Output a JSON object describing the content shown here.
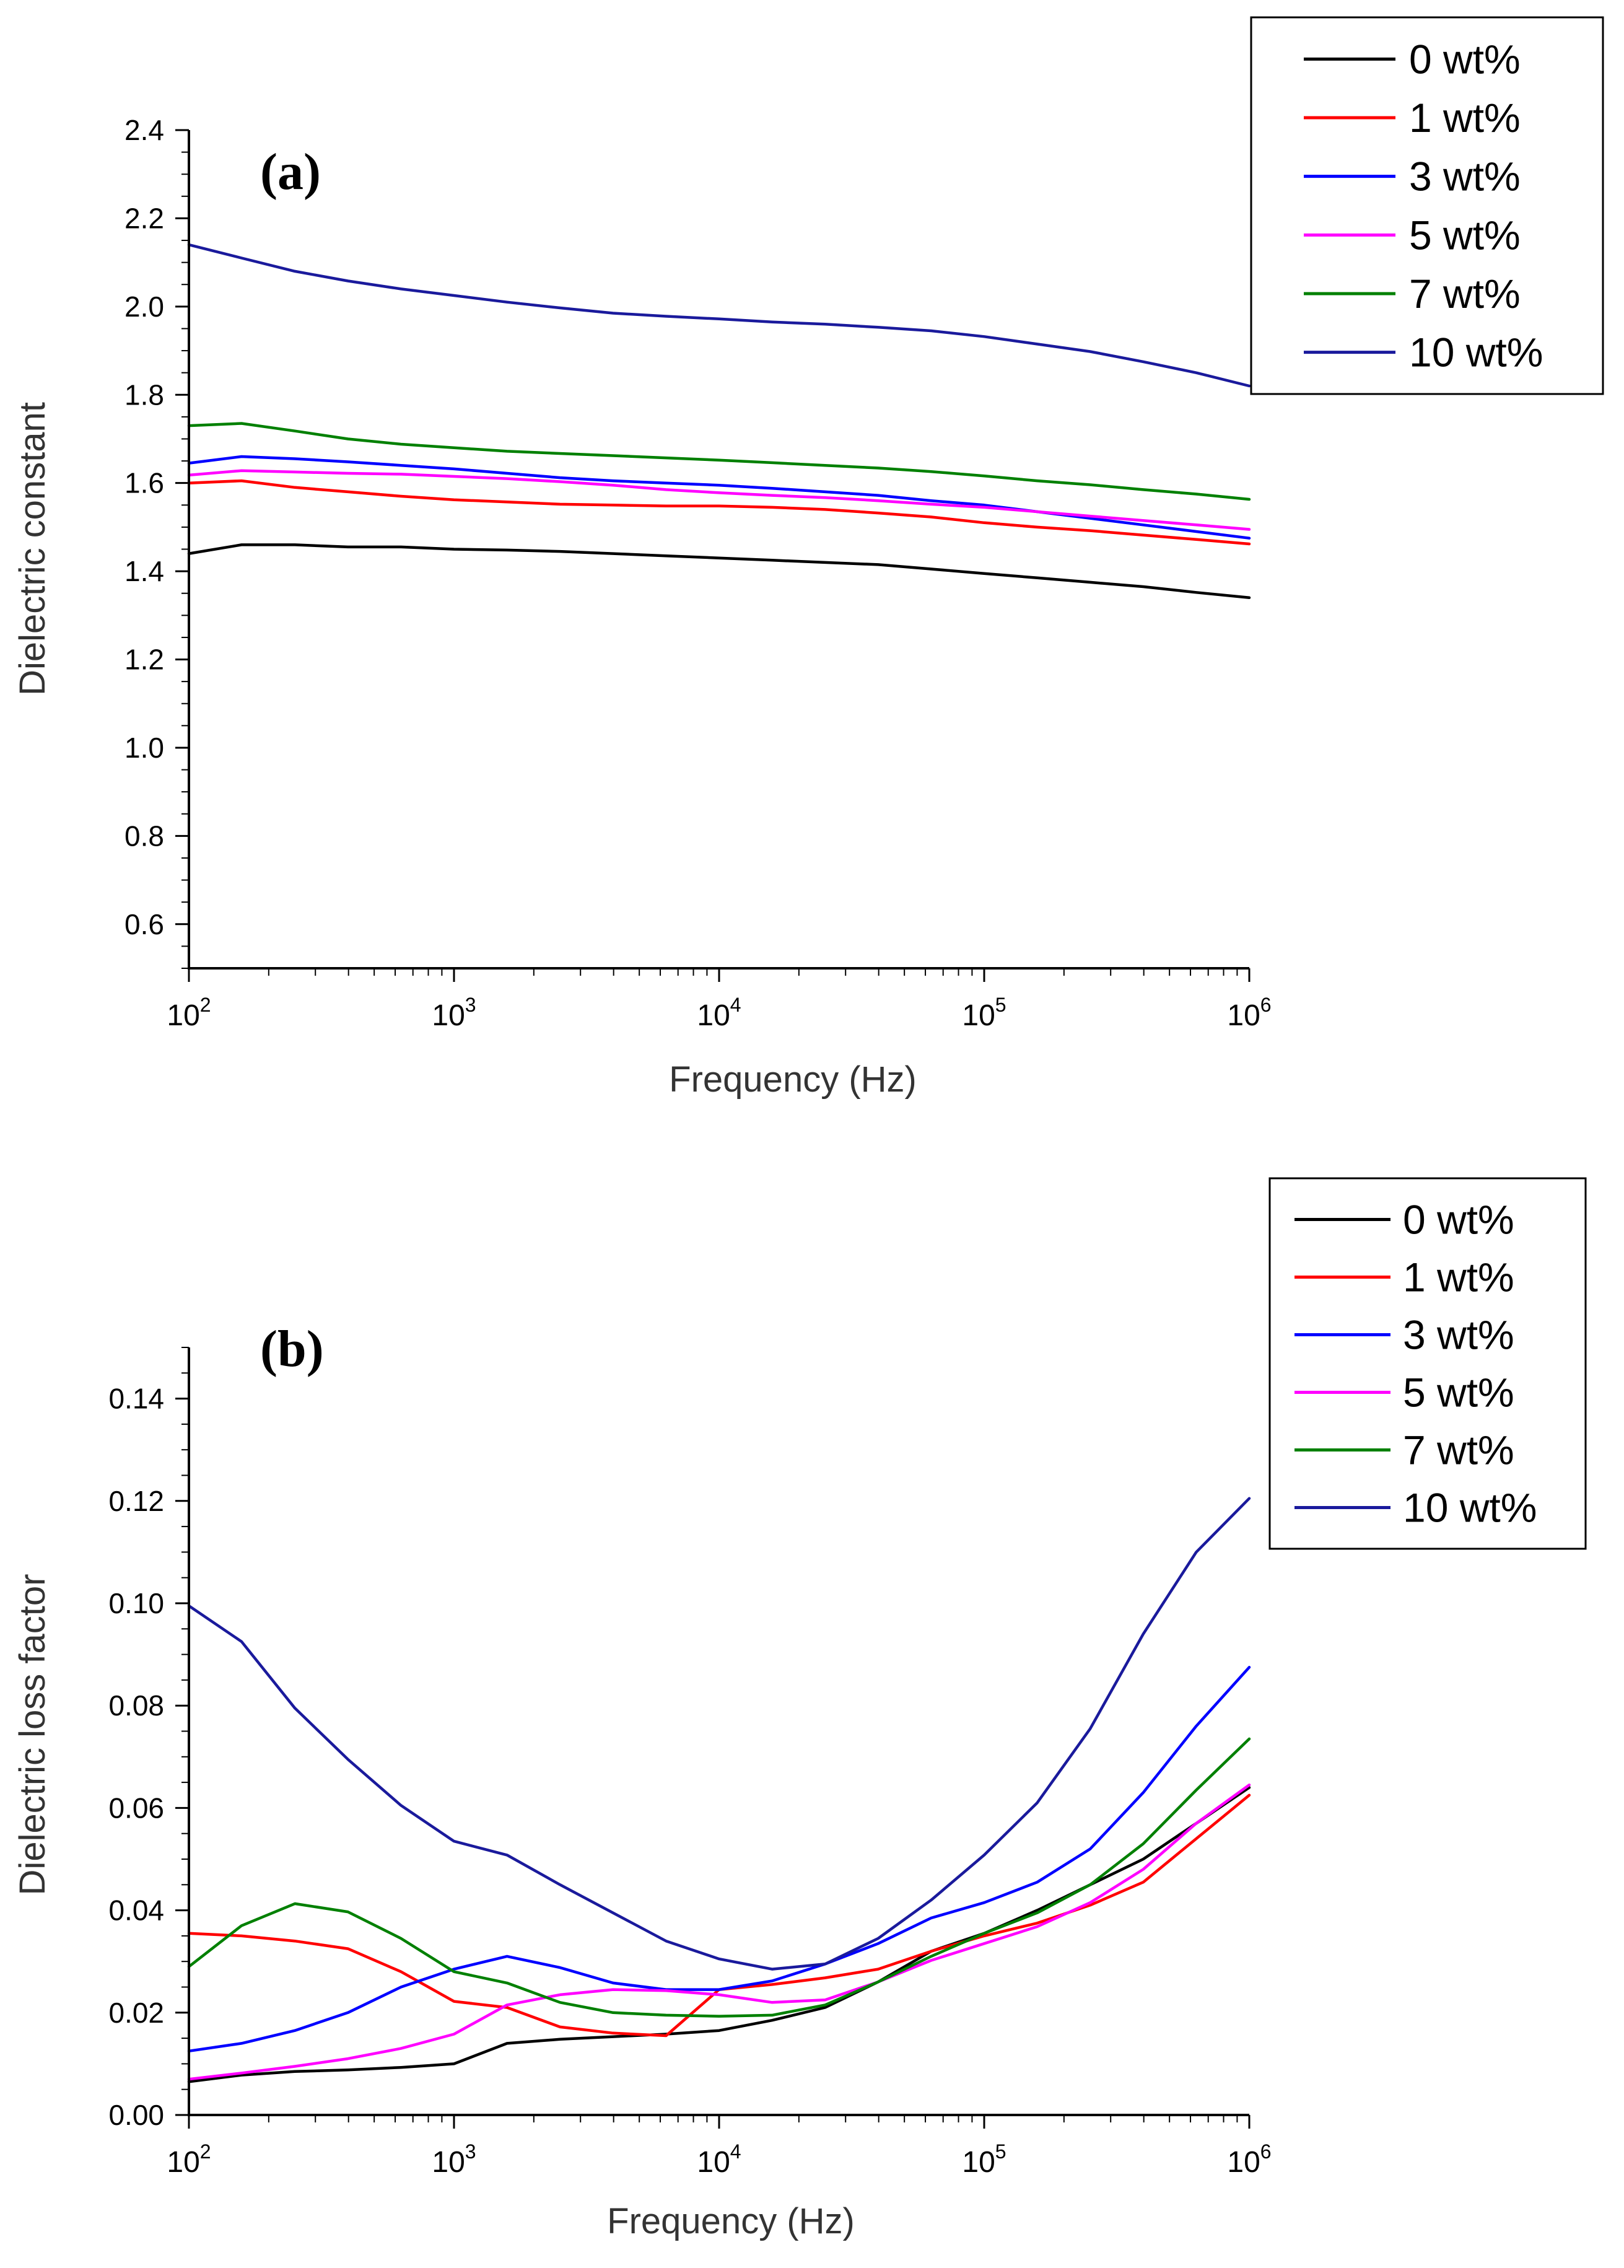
{
  "chart_data": [
    {
      "type": "line",
      "panel_label": "(a)",
      "title": "",
      "xlabel": "Frequency (Hz)",
      "ylabel": "Dielectric constant",
      "xscale": "log",
      "xlim": [
        100,
        1000000
      ],
      "ylim": [
        0.5,
        2.4
      ],
      "x_ticks": [
        {
          "base": "10",
          "exp": "2"
        },
        {
          "base": "10",
          "exp": "3"
        },
        {
          "base": "10",
          "exp": "4"
        },
        {
          "base": "10",
          "exp": "5"
        },
        {
          "base": "10",
          "exp": "6"
        }
      ],
      "y_ticks": [
        "0.6",
        "0.8",
        "1.0",
        "1.2",
        "1.4",
        "1.6",
        "1.8",
        "2.0",
        "2.2",
        "2.4"
      ],
      "grid": false,
      "legend_position": "outside-top-right",
      "x": [
        100,
        158,
        251,
        398,
        631,
        1000,
        1585,
        2512,
        3981,
        6310,
        10000,
        15850,
        25120,
        39810,
        63100,
        100000,
        158500,
        251200,
        398100,
        631000,
        1000000
      ],
      "series": [
        {
          "name": "0 wt%",
          "color": "#000000",
          "values": [
            1.44,
            1.46,
            1.46,
            1.455,
            1.455,
            1.45,
            1.448,
            1.445,
            1.44,
            1.435,
            1.43,
            1.425,
            1.42,
            1.415,
            1.405,
            1.395,
            1.385,
            1.375,
            1.365,
            1.352,
            1.34
          ]
        },
        {
          "name": "1 wt%",
          "color": "#ff0000",
          "values": [
            1.6,
            1.605,
            1.59,
            1.58,
            1.57,
            1.562,
            1.557,
            1.552,
            1.55,
            1.548,
            1.548,
            1.545,
            1.54,
            1.532,
            1.523,
            1.51,
            1.5,
            1.492,
            1.482,
            1.472,
            1.462
          ]
        },
        {
          "name": "3 wt%",
          "color": "#0000ff",
          "values": [
            1.645,
            1.66,
            1.655,
            1.648,
            1.64,
            1.632,
            1.622,
            1.612,
            1.605,
            1.6,
            1.595,
            1.588,
            1.58,
            1.572,
            1.56,
            1.55,
            1.535,
            1.52,
            1.505,
            1.49,
            1.475
          ]
        },
        {
          "name": "5 wt%",
          "color": "#ff00ff",
          "values": [
            1.618,
            1.628,
            1.625,
            1.622,
            1.62,
            1.615,
            1.61,
            1.603,
            1.595,
            1.585,
            1.578,
            1.572,
            1.567,
            1.56,
            1.552,
            1.545,
            1.535,
            1.525,
            1.515,
            1.505,
            1.495
          ]
        },
        {
          "name": "7 wt%",
          "color": "#008000",
          "values": [
            1.73,
            1.735,
            1.718,
            1.7,
            1.688,
            1.68,
            1.672,
            1.667,
            1.662,
            1.657,
            1.652,
            1.646,
            1.64,
            1.634,
            1.626,
            1.616,
            1.605,
            1.596,
            1.585,
            1.575,
            1.563
          ]
        },
        {
          "name": "10 wt%",
          "color": "#1a1a9c",
          "values": [
            2.14,
            2.11,
            2.08,
            2.058,
            2.04,
            2.025,
            2.01,
            1.997,
            1.985,
            1.978,
            1.972,
            1.965,
            1.96,
            1.953,
            1.945,
            1.932,
            1.915,
            1.898,
            1.875,
            1.85,
            1.82
          ]
        }
      ]
    },
    {
      "type": "line",
      "panel_label": "(b)",
      "title": "",
      "xlabel": "Frequency (Hz)",
      "ylabel": "Dielectric loss factor",
      "xscale": "log",
      "xlim": [
        100,
        1000000
      ],
      "ylim": [
        0,
        0.15
      ],
      "x_ticks": [
        {
          "base": "10",
          "exp": "2"
        },
        {
          "base": "10",
          "exp": "3"
        },
        {
          "base": "10",
          "exp": "4"
        },
        {
          "base": "10",
          "exp": "5"
        },
        {
          "base": "10",
          "exp": "6"
        }
      ],
      "y_ticks": [
        "0.00",
        "0.02",
        "0.04",
        "0.06",
        "0.08",
        "0.10",
        "0.12",
        "0.14"
      ],
      "grid": false,
      "legend_position": "outside-top-right",
      "x": [
        100,
        158,
        251,
        398,
        631,
        1000,
        1585,
        2512,
        3981,
        6310,
        10000,
        15850,
        25120,
        39810,
        63100,
        100000,
        158500,
        251200,
        398100,
        631000,
        1000000
      ],
      "series": [
        {
          "name": "0 wt%",
          "color": "#000000",
          "values": [
            0.0065,
            0.0078,
            0.0085,
            0.0088,
            0.0093,
            0.01,
            0.014,
            0.0148,
            0.0153,
            0.0158,
            0.0165,
            0.0185,
            0.021,
            0.026,
            0.032,
            0.0355,
            0.04,
            0.045,
            0.05,
            0.057,
            0.064
          ]
        },
        {
          "name": "1 wt%",
          "color": "#ff0000",
          "values": [
            0.0355,
            0.035,
            0.034,
            0.0325,
            0.028,
            0.0222,
            0.021,
            0.0172,
            0.016,
            0.0155,
            0.0245,
            0.0255,
            0.0268,
            0.0285,
            0.032,
            0.035,
            0.0375,
            0.041,
            0.0455,
            0.054,
            0.0625
          ]
        },
        {
          "name": "3 wt%",
          "color": "#0000ff",
          "values": [
            0.0125,
            0.014,
            0.0165,
            0.02,
            0.025,
            0.0285,
            0.031,
            0.0288,
            0.0258,
            0.0245,
            0.0245,
            0.0262,
            0.0295,
            0.0335,
            0.0385,
            0.0415,
            0.0455,
            0.052,
            0.063,
            0.076,
            0.0875
          ]
        },
        {
          "name": "5 wt%",
          "color": "#ff00ff",
          "values": [
            0.007,
            0.0082,
            0.0095,
            0.011,
            0.013,
            0.0158,
            0.0215,
            0.0235,
            0.0245,
            0.0243,
            0.0235,
            0.022,
            0.0225,
            0.026,
            0.0302,
            0.0335,
            0.0368,
            0.0415,
            0.048,
            0.057,
            0.0645
          ]
        },
        {
          "name": "7 wt%",
          "color": "#008000",
          "values": [
            0.029,
            0.037,
            0.0413,
            0.0397,
            0.0345,
            0.028,
            0.0258,
            0.022,
            0.02,
            0.0195,
            0.0193,
            0.0195,
            0.0215,
            0.026,
            0.031,
            0.0355,
            0.0395,
            0.045,
            0.053,
            0.0635,
            0.0735
          ]
        },
        {
          "name": "10 wt%",
          "color": "#1a1a9c",
          "values": [
            0.0995,
            0.0925,
            0.0795,
            0.0695,
            0.0605,
            0.0535,
            0.0508,
            0.045,
            0.0395,
            0.034,
            0.0305,
            0.0285,
            0.0295,
            0.0345,
            0.042,
            0.0508,
            0.061,
            0.0755,
            0.094,
            0.11,
            0.1205
          ]
        }
      ]
    }
  ]
}
